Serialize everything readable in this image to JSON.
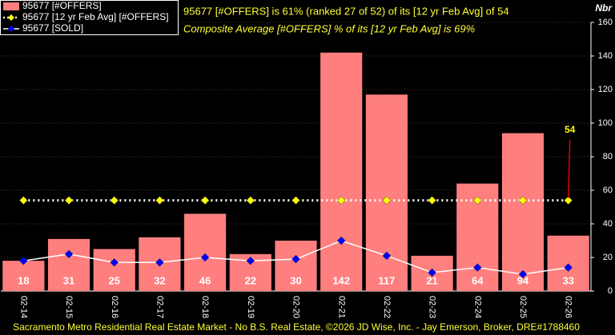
{
  "chart_data": {
    "type": "bar",
    "headline": "95677 [#OFFERS] is 61% (ranked 27 of 52) of its [12 yr Feb Avg] of 54",
    "subheadline": "Composite Average [#OFFERS] % of its [12 yr Feb Avg] is 69%",
    "y_axis_label": "Nbr",
    "footer": "Sacramento Metro Residential Real Estate Market - No B.S. Real Estate, ©2026 JD Wise, Inc. - Jay Emerson, Broker, DRE#1788460",
    "annotation": {
      "label": "54",
      "series": 1,
      "index": 12
    },
    "categories": [
      "02-14",
      "02-15",
      "02-16",
      "02-17",
      "02-18",
      "02-19",
      "02-20",
      "02-21",
      "02-22",
      "02-23",
      "02-24",
      "02-25",
      "02-26"
    ],
    "series": [
      {
        "name": "95677 [#OFFERS]",
        "kind": "bar",
        "color": "#ff7f7f",
        "values": [
          18,
          31,
          25,
          32,
          46,
          22,
          30,
          142,
          117,
          21,
          64,
          94,
          33
        ]
      },
      {
        "name": "95677 [12 yr Feb Avg] [#OFFERS]",
        "kind": "dotted-line",
        "color": "#ffffff",
        "marker_color": "#ffff00",
        "values": [
          54,
          54,
          54,
          54,
          54,
          54,
          54,
          54,
          54,
          54,
          54,
          54,
          54
        ]
      },
      {
        "name": "95677 [SOLD]",
        "kind": "line",
        "color": "#ffffff",
        "marker_color": "#0000ff",
        "values": [
          18,
          22,
          17,
          17,
          20,
          18,
          19,
          30,
          21,
          11,
          14,
          10,
          14
        ]
      }
    ],
    "ylim": [
      0,
      160
    ],
    "yticks": [
      0,
      20,
      40,
      60,
      80,
      100,
      120,
      140,
      160
    ],
    "grid": true
  }
}
